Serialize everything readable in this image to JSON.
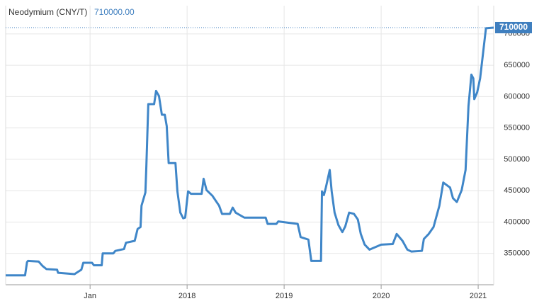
{
  "chart_data": {
    "type": "line",
    "title": "Neodymium (CNY/T)",
    "current_value_label": "710000.00",
    "current_value": 710000,
    "x": [
      2016.13,
      2016.33,
      2016.35,
      2016.36,
      2016.47,
      2016.51,
      2016.55,
      2016.66,
      2016.67,
      2016.84,
      2016.87,
      2016.91,
      2016.93,
      2017.02,
      2017.04,
      2017.12,
      2017.13,
      2017.24,
      2017.26,
      2017.35,
      2017.37,
      2017.46,
      2017.49,
      2017.52,
      2017.53,
      2017.57,
      2017.58,
      2017.6,
      2017.66,
      2017.68,
      2017.71,
      2017.74,
      2017.77,
      2017.79,
      2017.81,
      2017.88,
      2017.9,
      2017.93,
      2017.96,
      2017.98,
      2018.01,
      2018.04,
      2018.15,
      2018.17,
      2018.2,
      2018.26,
      2018.33,
      2018.36,
      2018.44,
      2018.47,
      2018.5,
      2018.59,
      2018.81,
      2018.83,
      2018.92,
      2018.94,
      2019.14,
      2019.17,
      2019.25,
      2019.28,
      2019.38,
      2019.39,
      2019.41,
      2019.43,
      2019.47,
      2019.49,
      2019.52,
      2019.56,
      2019.6,
      2019.63,
      2019.67,
      2019.72,
      2019.76,
      2019.79,
      2019.83,
      2019.88,
      2019.94,
      2020.0,
      2020.12,
      2020.16,
      2020.22,
      2020.27,
      2020.31,
      2020.42,
      2020.44,
      2020.49,
      2020.54,
      2020.6,
      2020.64,
      2020.71,
      2020.74,
      2020.78,
      2020.83,
      2020.87,
      2020.9,
      2020.93,
      2020.95,
      2020.96,
      2020.99,
      2021.02,
      2021.05,
      2021.08,
      2021.16
    ],
    "series": [
      {
        "name": "Neodymium",
        "color": "#3f86c8",
        "values": [
          315000,
          315000,
          336000,
          338000,
          337000,
          330000,
          325000,
          324000,
          319000,
          317000,
          320000,
          324000,
          335000,
          335000,
          331000,
          331000,
          350000,
          350000,
          354000,
          357000,
          367000,
          370000,
          389000,
          392000,
          426000,
          447000,
          489000,
          588000,
          588000,
          609000,
          601000,
          571000,
          571000,
          553000,
          494000,
          494000,
          449000,
          415000,
          406000,
          407000,
          449000,
          445000,
          445000,
          469000,
          451000,
          442000,
          426000,
          413000,
          413000,
          423000,
          415000,
          407000,
          407000,
          397000,
          397000,
          401000,
          397000,
          376000,
          372000,
          338000,
          338000,
          449000,
          443000,
          455000,
          483000,
          449000,
          415000,
          395000,
          384000,
          393000,
          415000,
          413000,
          404000,
          381000,
          364000,
          356000,
          360000,
          364000,
          365000,
          381000,
          370000,
          356000,
          353000,
          354000,
          373000,
          381000,
          392000,
          426000,
          463000,
          455000,
          438000,
          432000,
          451000,
          483000,
          585000,
          635000,
          629000,
          596000,
          607000,
          629000,
          669000,
          709000,
          710000
        ]
      }
    ],
    "xlim": [
      2016.13,
      2021.16
    ],
    "xticks": [
      {
        "value": 2017,
        "label": "Jan"
      },
      2018,
      2019,
      2020,
      2021
    ],
    "ylim": [
      300000,
      745000
    ],
    "yticks": [
      350000,
      400000,
      450000,
      500000,
      550000,
      600000,
      650000,
      700000
    ],
    "grid": true
  }
}
